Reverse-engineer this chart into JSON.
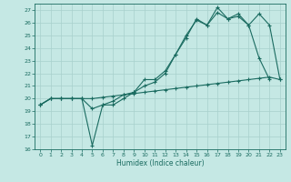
{
  "xlabel": "Humidex (Indice chaleur)",
  "bg_color": "#c5e8e4",
  "grid_color": "#a8d0cc",
  "line_color": "#1a6b60",
  "xlim": [
    -0.5,
    23.5
  ],
  "ylim": [
    16,
    27.5
  ],
  "yticks": [
    16,
    17,
    18,
    19,
    20,
    21,
    22,
    23,
    24,
    25,
    26,
    27
  ],
  "xticks": [
    0,
    1,
    2,
    3,
    4,
    5,
    6,
    7,
    8,
    9,
    10,
    11,
    12,
    13,
    14,
    15,
    16,
    17,
    18,
    19,
    20,
    21,
    22,
    23
  ],
  "line1_x": [
    0,
    1,
    2,
    3,
    4,
    5,
    6,
    7,
    8,
    9,
    10,
    11,
    12,
    13,
    14,
    15,
    16,
    17,
    18,
    19,
    20,
    21,
    22
  ],
  "line1_y": [
    19.5,
    20.0,
    20.0,
    20.0,
    20.0,
    19.2,
    19.5,
    19.8,
    20.3,
    20.5,
    21.5,
    21.5,
    22.2,
    23.5,
    25.0,
    26.2,
    25.8,
    26.8,
    26.3,
    26.7,
    25.8,
    23.2,
    21.5
  ],
  "line2_x": [
    0,
    1,
    2,
    3,
    4,
    5,
    6,
    7,
    8,
    9,
    10,
    11,
    12,
    13,
    14,
    15,
    16,
    17,
    18,
    19,
    20,
    21,
    22,
    23
  ],
  "line2_y": [
    19.5,
    20.0,
    20.0,
    20.0,
    20.0,
    16.3,
    19.5,
    19.5,
    20.0,
    20.5,
    21.0,
    21.3,
    22.0,
    23.5,
    24.8,
    26.3,
    25.8,
    27.2,
    26.3,
    26.5,
    25.8,
    26.7,
    25.8,
    21.5
  ],
  "line3_x": [
    0,
    1,
    2,
    3,
    4,
    5,
    6,
    7,
    8,
    9,
    10,
    11,
    12,
    13,
    14,
    15,
    16,
    17,
    18,
    19,
    20,
    21,
    22,
    23
  ],
  "line3_y": [
    19.5,
    20.0,
    20.0,
    20.0,
    20.0,
    20.0,
    20.1,
    20.2,
    20.3,
    20.4,
    20.5,
    20.6,
    20.7,
    20.8,
    20.9,
    21.0,
    21.1,
    21.2,
    21.3,
    21.4,
    21.5,
    21.6,
    21.7,
    21.5
  ]
}
